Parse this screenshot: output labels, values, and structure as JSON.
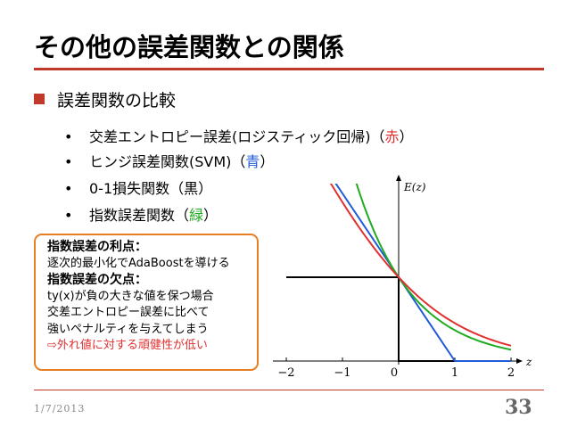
{
  "slide": {
    "title": "その他の誤差関数との関係",
    "main_bullet": "誤差関数の比較",
    "sub_bullets": [
      {
        "text": "交差エントロピー誤差(ロジスティック回帰)（",
        "color_word": "赤",
        "suffix": "）",
        "color": "#e03030"
      },
      {
        "text": "ヒンジ誤差関数(SVM)（",
        "color_word": "青",
        "suffix": "）",
        "color": "#1e5bd6"
      },
      {
        "text": "0-1損失関数（黒）",
        "color_word": "",
        "suffix": "",
        "color": "#000000"
      },
      {
        "text": "指数誤差関数（",
        "color_word": "緑",
        "suffix": "）",
        "color": "#22aa22"
      }
    ],
    "bullet_char": "•",
    "callout": {
      "adv_head": "指数誤差の利点：",
      "adv_text": "逐次的最小化でAdaBoostを導ける",
      "dis_head": "指数誤差の欠点：",
      "dis_lines": [
        "ty(x)が負の大きな値を保つ場合",
        "交差エントロピー誤差に比べて",
        "強いペナルティを与えてしまう"
      ],
      "conclusion": "⇨外れ値に対する頑健性が低い"
    },
    "date": "1/7/2013",
    "page": "33"
  },
  "colors": {
    "accent": "#c0392b",
    "callout_border": "#e67e22"
  },
  "chart_data": {
    "type": "line",
    "ylabel": "E(z)",
    "xlabel": "z",
    "xlim": [
      -2.2,
      2.2
    ],
    "ylim": [
      0,
      2.6
    ],
    "x_ticks": [
      "−2",
      "−1",
      "0",
      "1",
      "2"
    ],
    "series": [
      {
        "name": "",
        "function": "logistic_cross_entropy",
        "color": "#e03030",
        "x": [
          -2,
          -1.5,
          -1,
          -0.5,
          0,
          0.5,
          1,
          1.5,
          2
        ],
        "values": [
          3.05,
          2.46,
          1.9,
          1.4,
          1.0,
          0.68,
          0.45,
          0.29,
          0.18
        ]
      },
      {
        "name": "",
        "function": "hinge",
        "color": "#1e5bd6",
        "x": [
          -2,
          -1,
          0,
          1,
          2
        ],
        "values": [
          3,
          2,
          1,
          0,
          0
        ]
      },
      {
        "name": "",
        "function": "exponential",
        "color": "#22aa22",
        "x": [
          -1,
          -0.5,
          0,
          0.5,
          1,
          1.5,
          2
        ],
        "values": [
          2.72,
          1.65,
          1.0,
          0.61,
          0.37,
          0.22,
          0.14
        ]
      },
      {
        "name": "",
        "function": "zero_one",
        "color": "#000000",
        "x": [
          -2,
          0,
          0,
          2
        ],
        "values": [
          1,
          1,
          0,
          0
        ]
      }
    ]
  }
}
